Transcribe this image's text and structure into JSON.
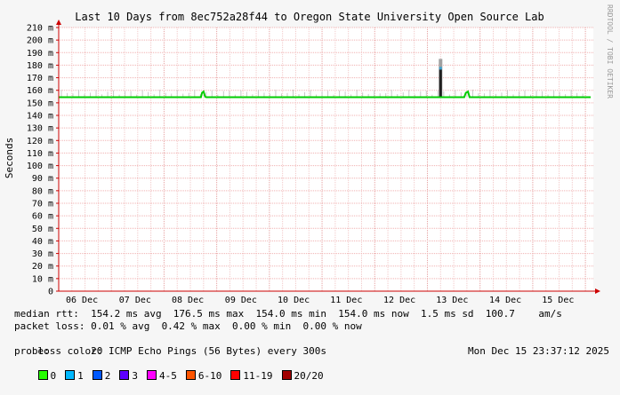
{
  "chart_data": {
    "type": "line",
    "title": "Last 10 Days from 8ec752a28f44 to Oregon State University Open Source Lab",
    "ylabel": "Seconds",
    "watermark": "RRDTOOL / TOBI OETIKER",
    "ylim": [
      0,
      210
    ],
    "yticks": [
      "0",
      "10 m",
      "20 m",
      "30 m",
      "40 m",
      "50 m",
      "60 m",
      "70 m",
      "80 m",
      "90 m",
      "100 m",
      "110 m",
      "120 m",
      "130 m",
      "140 m",
      "150 m",
      "160 m",
      "170 m",
      "180 m",
      "190 m",
      "200 m",
      "210 m"
    ],
    "xlim_days": [
      0,
      10.15
    ],
    "categories": [
      "06 Dec",
      "07 Dec",
      "08 Dec",
      "09 Dec",
      "10 Dec",
      "11 Dec",
      "12 Dec",
      "13 Dec",
      "14 Dec",
      "15 Dec"
    ],
    "category_positions": [
      0.44,
      1.45,
      2.45,
      3.46,
      4.46,
      5.46,
      6.47,
      7.47,
      8.48,
      9.48
    ],
    "series": [
      {
        "name": "median rtt",
        "x": [
          0,
          2.7,
          2.72,
          2.75,
          2.78,
          2.8,
          7.7,
          7.73,
          7.77,
          7.8,
          10.1
        ],
        "values": [
          154.5,
          154.5,
          158,
          159,
          155,
          154.5,
          154.5,
          158,
          159,
          154.5,
          154.5
        ]
      }
    ],
    "spike": {
      "x": 7.25,
      "y_min": 154,
      "y_max": 176.5,
      "smoke_max": 185
    },
    "grid": true,
    "colors": {
      "line": "#00cc00",
      "grid": "#f0a0a0",
      "axis": "#cc0000",
      "spike": "#202020",
      "smoke": "#c8c8c8"
    }
  },
  "stats": {
    "median_rtt": "median rtt:  154.2 ms avg  176.5 ms max  154.0 ms min  154.0 ms now  1.5 ms sd  100.7    am/s",
    "packet_loss": "packet loss: 0.01 % avg  0.42 % max  0.00 % min  0.00 % now",
    "loss_color_label": "loss color:",
    "probe": "probe:       20 ICMP Echo Pings (56 Bytes) every 300s",
    "timestamp": "Mon Dec 15 23:37:12 2025"
  },
  "loss_legend": [
    {
      "label": "0",
      "color": "#26ff00"
    },
    {
      "label": "1",
      "color": "#00b8ff"
    },
    {
      "label": "2",
      "color": "#0059ff"
    },
    {
      "label": "3",
      "color": "#5e00ff"
    },
    {
      "label": "4-5",
      "color": "#ff00ff"
    },
    {
      "label": "6-10",
      "color": "#ff5500"
    },
    {
      "label": "11-19",
      "color": "#ff0000"
    },
    {
      "label": "20/20",
      "color": "#a10000"
    }
  ]
}
